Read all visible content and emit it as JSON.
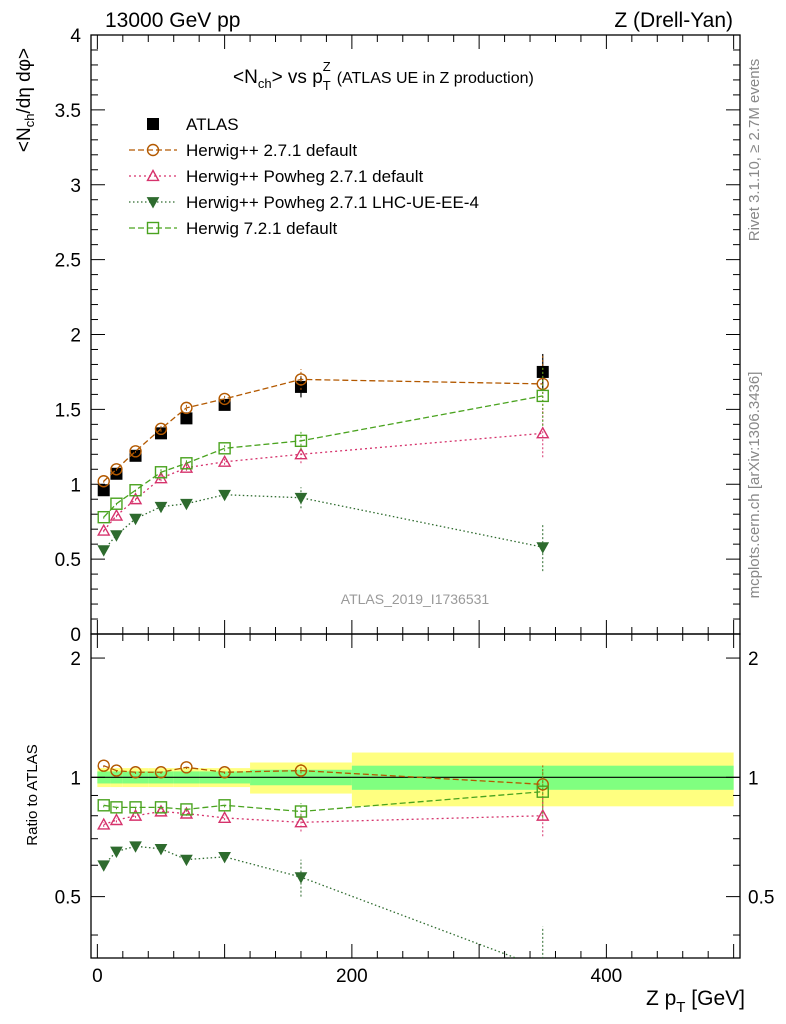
{
  "header": {
    "left": "13000 GeV pp",
    "right": "Z (Drell-Yan)"
  },
  "side": {
    "rivet": "Rivet 3.1.10, ≥ 2.7M events",
    "mcplots": "mcplots.cern.ch [arXiv:1306.3436]"
  },
  "chart_data": {
    "type": "line",
    "title": {
      "main_N": "<N",
      "main_ch": "ch",
      "main_mid": "> vs p",
      "main_T": "T",
      "main_Z": "Z",
      "main_sub": "(ATLAS UE in Z production)"
    },
    "watermark": "ATLAS_2019_I1736531",
    "ylabel_top": "<N_ch/dη dφ>",
    "ylabel_bottom": "Ratio to ATLAS",
    "xlabel": "Z p_T [GeV]",
    "xlim": [
      -5,
      505
    ],
    "ylim_top": [
      0,
      4
    ],
    "ylim_bottom": [
      0.35,
      2.3
    ],
    "x_ticks": [
      0,
      200,
      400
    ],
    "y_ticks_top": [
      "0",
      "0.5",
      "1",
      "1.5",
      "2",
      "2.5",
      "3",
      "3.5",
      "4"
    ],
    "y_ticks_bottom": [
      "0.5",
      "1",
      "2"
    ],
    "legend_position": "top-left",
    "bins": [
      [
        0,
        10
      ],
      [
        10,
        20
      ],
      [
        20,
        40
      ],
      [
        40,
        60
      ],
      [
        60,
        80
      ],
      [
        80,
        120
      ],
      [
        120,
        200
      ],
      [
        200,
        500
      ]
    ],
    "x": [
      5,
      15,
      30,
      50,
      70,
      100,
      160,
      350
    ],
    "data": {
      "name": "ATLAS",
      "values": [
        0.96,
        1.07,
        1.19,
        1.34,
        1.44,
        1.53,
        1.65,
        1.75
      ],
      "errors": [
        0.02,
        0.02,
        0.02,
        0.03,
        0.03,
        0.03,
        0.07,
        0.12
      ],
      "ratio_band_inner": [
        0.035,
        0.035,
        0.035,
        0.035,
        0.035,
        0.035,
        0.045,
        0.07
      ],
      "ratio_band_outer": [
        0.055,
        0.055,
        0.055,
        0.055,
        0.055,
        0.055,
        0.09,
        0.155
      ]
    },
    "series": [
      {
        "name": "Herwig++ 2.7.1 default",
        "color": "#b35900",
        "marker": "circle",
        "dash": "6,3",
        "values": [
          1.02,
          1.1,
          1.22,
          1.37,
          1.51,
          1.57,
          1.7,
          1.67
        ],
        "errors": [
          0.01,
          0.01,
          0.01,
          0.02,
          0.02,
          0.02,
          0.07,
          0.2
        ]
      },
      {
        "name": "Herwig++ Powheg 2.7.1 default",
        "color": "#d6336c",
        "marker": "triangle",
        "dash": "2,3",
        "values": [
          0.69,
          0.79,
          0.9,
          1.04,
          1.11,
          1.15,
          1.2,
          1.34
        ],
        "errors": [
          0.01,
          0.01,
          0.01,
          0.02,
          0.02,
          0.02,
          0.06,
          0.16
        ]
      },
      {
        "name": "Herwig++ Powheg 2.7.1 LHC-UE-EE-4",
        "color": "#2e6b2e",
        "marker": "triangle-down",
        "dash": "1.5,2.5",
        "values": [
          0.56,
          0.66,
          0.77,
          0.85,
          0.87,
          0.93,
          0.91,
          0.58
        ],
        "errors": [
          0.01,
          0.01,
          0.01,
          0.02,
          0.02,
          0.03,
          0.07,
          0.16
        ]
      },
      {
        "name": "Herwig 7.2.1 default",
        "color": "#4aa31f",
        "marker": "square",
        "dash": "6,3",
        "values": [
          0.78,
          0.87,
          0.96,
          1.08,
          1.14,
          1.24,
          1.29,
          1.59
        ],
        "errors": [
          0.01,
          0.01,
          0.01,
          0.02,
          0.02,
          0.02,
          0.06,
          0.2
        ]
      }
    ],
    "ratios": [
      [
        1.07,
        1.04,
        1.03,
        1.03,
        1.06,
        1.03,
        1.04,
        0.96
      ],
      [
        0.76,
        0.78,
        0.8,
        0.82,
        0.81,
        0.79,
        0.77,
        0.8
      ],
      [
        0.6,
        0.65,
        0.67,
        0.66,
        0.62,
        0.63,
        0.56,
        0.33
      ],
      [
        0.85,
        0.84,
        0.84,
        0.84,
        0.83,
        0.85,
        0.82,
        0.92
      ]
    ],
    "ratio_errors": [
      [
        0.01,
        0.01,
        0.01,
        0.01,
        0.01,
        0.01,
        0.04,
        0.12
      ],
      [
        0.01,
        0.01,
        0.01,
        0.01,
        0.01,
        0.01,
        0.04,
        0.09
      ],
      [
        0.01,
        0.01,
        0.01,
        0.01,
        0.01,
        0.02,
        0.06,
        0.09
      ],
      [
        0.01,
        0.01,
        0.01,
        0.01,
        0.01,
        0.01,
        0.04,
        0.13
      ]
    ]
  }
}
